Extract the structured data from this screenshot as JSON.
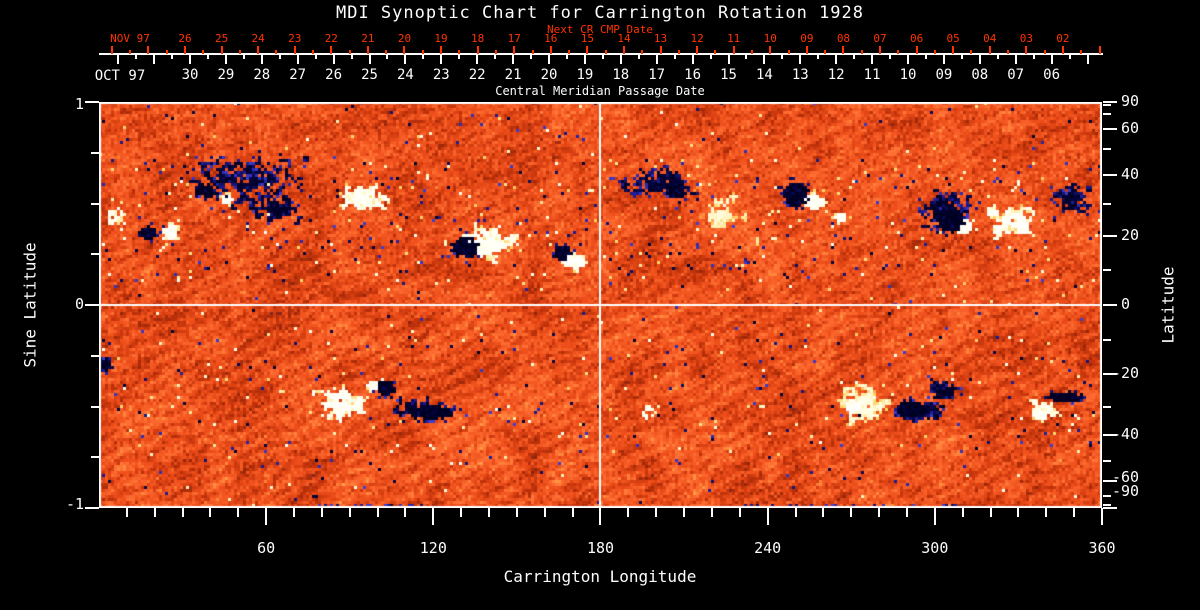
{
  "title": "MDI Synoptic Chart for Carrington Rotation 1928",
  "subtitle": "Central Meridian Passage Date",
  "top_axis": {
    "next_cr_label": "Next CR CMP Date",
    "nov_label": "NOV 97",
    "nov_days": [
      "26",
      "25",
      "24",
      "23",
      "22",
      "21",
      "20",
      "19",
      "18",
      "17",
      "16",
      "15",
      "14",
      "13",
      "12",
      "11",
      "10",
      "09",
      "08",
      "07",
      "06",
      "05",
      "04",
      "03",
      "02"
    ],
    "oct_label": "OCT 97",
    "oct_days": [
      "30",
      "29",
      "28",
      "27",
      "26",
      "25",
      "24",
      "23",
      "22",
      "21",
      "20",
      "19",
      "18",
      "17",
      "16",
      "15",
      "14",
      "13",
      "12",
      "11",
      "10",
      "09",
      "08",
      "07",
      "06"
    ]
  },
  "x_axis": {
    "label": "Carrington Longitude",
    "tick_labels": [
      "60",
      "120",
      "180",
      "240",
      "300",
      "360"
    ],
    "minor_step_deg": 10,
    "range_deg": [
      0,
      360
    ]
  },
  "y_left": {
    "label": "Sine Latitude",
    "tick_labels": [
      "1",
      "0",
      "-1"
    ],
    "minor_step": 0.25,
    "range": [
      -1,
      1
    ]
  },
  "y_right": {
    "label": "Latitude",
    "tick_labels": [
      "90",
      "60",
      "40",
      "20",
      "0",
      "-20",
      "-40",
      "-60",
      "-90"
    ],
    "minor_ticks_deg": [
      80,
      70,
      50,
      30,
      10,
      -10,
      -30,
      -50,
      -70,
      -80
    ]
  },
  "colors": {
    "background": "#000000",
    "axis": "#fdfdfd",
    "secondary_axis_red": "#ff3300",
    "quiet_sun_orange": "#ee4e1a",
    "negative_polarity_navy": "#1c1c96",
    "positive_polarity_white": "#ffffff",
    "plage_yellow": "#ffd468"
  },
  "chart_data": {
    "type": "heatmap",
    "title": "MDI Synoptic Chart for Carrington Rotation 1928",
    "xlabel": "Carrington Longitude",
    "ylabel_left": "Sine Latitude",
    "ylabel_right": "Latitude",
    "x_range_deg": [
      0,
      360
    ],
    "y_range_sinlat": [
      -1,
      1
    ],
    "grid_lines": {
      "equator_sinlat": 0,
      "meridian_lon_deg": 180
    },
    "background_field": "quiet-sun salt-and-pepper magnetic noise, orange base with blue/yellow speckle, diagonal striations",
    "active_regions": [
      {
        "name": "NL-speckle-cloud",
        "style": "speckle",
        "polarity": -1,
        "lon": 53,
        "sinlat": 0.62,
        "rlon": 26,
        "rsin": 0.16,
        "count": 240
      },
      {
        "name": "NL-filaments",
        "style": "network",
        "polarity": -1,
        "lon": 64,
        "sinlat": 0.48,
        "rlon": 11,
        "rsin": 0.07,
        "count": 30
      },
      {
        "name": "NL-dark-core",
        "style": "blob",
        "polarity": -1,
        "lon": 38.5,
        "sinlat": 0.565,
        "rlon": 3.2,
        "rsin": 0.035
      },
      {
        "name": "NL-white-core",
        "style": "blob",
        "polarity": 1,
        "lon": 46,
        "sinlat": 0.52,
        "rlon": 2.2,
        "rsin": 0.024
      },
      {
        "name": "NL-pair-neg",
        "style": "blob",
        "polarity": -1,
        "lon": 18.5,
        "sinlat": 0.355,
        "rlon": 3.0,
        "rsin": 0.032
      },
      {
        "name": "NL-pair-pos",
        "style": "blob",
        "polarity": 1,
        "lon": 26,
        "sinlat": 0.35,
        "rlon": 3.0,
        "rsin": 0.035
      },
      {
        "name": "NL-plage-95",
        "style": "network",
        "polarity": 1,
        "lon": 95,
        "sinlat": 0.52,
        "rlon": 9,
        "rsin": 0.075,
        "count": 34
      },
      {
        "name": "NL-big-plage-140",
        "style": "network",
        "polarity": 1,
        "lon": 140,
        "sinlat": 0.305,
        "rlon": 10,
        "rsin": 0.1,
        "count": 50
      },
      {
        "name": "NL-big-neg-132",
        "style": "blob",
        "polarity": -1,
        "lon": 132.5,
        "sinlat": 0.285,
        "rlon": 5.5,
        "rsin": 0.05
      },
      {
        "name": "NL-pair167-neg",
        "style": "blob",
        "polarity": -1,
        "lon": 167,
        "sinlat": 0.25,
        "rlon": 3.2,
        "rsin": 0.04
      },
      {
        "name": "NL-pair167-pos",
        "style": "blob",
        "polarity": 1,
        "lon": 171.5,
        "sinlat": 0.21,
        "rlon": 3.4,
        "rsin": 0.038
      },
      {
        "name": "NL-edge-specks",
        "style": "speckle",
        "polarity": 1,
        "lon": 6,
        "sinlat": 0.43,
        "rlon": 4.5,
        "rsin": 0.05,
        "count": 26
      },
      {
        "name": "NR-speckle-cloud",
        "style": "speckle",
        "polarity": -1,
        "lon": 200,
        "sinlat": 0.6,
        "rlon": 15,
        "rsin": 0.085,
        "count": 130
      },
      {
        "name": "NR-dark-core-208",
        "style": "blob",
        "polarity": -1,
        "lon": 208,
        "sinlat": 0.565,
        "rlon": 3.4,
        "rsin": 0.04
      },
      {
        "name": "NR-yellow-plage-224",
        "style": "network",
        "polarity": 1,
        "lon": 224,
        "sinlat": 0.455,
        "rlon": 8.5,
        "rsin": 0.07,
        "count": 28,
        "strength": 0.75
      },
      {
        "name": "NR-black-250",
        "style": "blob",
        "polarity": -1,
        "lon": 250.5,
        "sinlat": 0.55,
        "rlon": 4.8,
        "rsin": 0.055
      },
      {
        "name": "NR-white-257",
        "style": "blob",
        "polarity": 1,
        "lon": 257.5,
        "sinlat": 0.5,
        "rlon": 3.4,
        "rsin": 0.04
      },
      {
        "name": "NR-white-267",
        "style": "blob",
        "polarity": 1,
        "lon": 267,
        "sinlat": 0.435,
        "rlon": 2.2,
        "rsin": 0.024
      },
      {
        "name": "NR-complex-cloud",
        "style": "speckle",
        "polarity": -1,
        "lon": 304,
        "sinlat": 0.47,
        "rlon": 13,
        "rsin": 0.13,
        "count": 150
      },
      {
        "name": "NR-complex-black",
        "style": "blob",
        "polarity": -1,
        "lon": 306,
        "sinlat": 0.41,
        "rlon": 5.5,
        "rsin": 0.055
      },
      {
        "name": "NR-complex-white",
        "style": "blob",
        "polarity": 1,
        "lon": 310.5,
        "sinlat": 0.38,
        "rlon": 3.0,
        "rsin": 0.034
      },
      {
        "name": "NR-plage-328",
        "style": "network",
        "polarity": 1,
        "lon": 328,
        "sinlat": 0.42,
        "rlon": 10,
        "rsin": 0.08,
        "count": 38
      },
      {
        "name": "NR-bright-331",
        "style": "blob",
        "polarity": 1,
        "lon": 331.5,
        "sinlat": 0.39,
        "rlon": 3.0,
        "rsin": 0.032
      },
      {
        "name": "NR-edge-trail",
        "style": "speckle",
        "polarity": -1,
        "lon": 349.5,
        "sinlat": 0.52,
        "rlon": 9,
        "rsin": 0.095,
        "count": 80
      },
      {
        "name": "SL-edge-neg",
        "style": "blob",
        "polarity": -1,
        "lon": 1.5,
        "sinlat": -0.3,
        "rlon": 2.4,
        "rsin": 0.035
      },
      {
        "name": "SL-plage-87",
        "style": "network",
        "polarity": 1,
        "lon": 87.5,
        "sinlat": -0.49,
        "rlon": 11,
        "rsin": 0.1,
        "count": 42
      },
      {
        "name": "SL-bright-88",
        "style": "blob",
        "polarity": 1,
        "lon": 88,
        "sinlat": -0.44,
        "rlon": 2.4,
        "rsin": 0.03
      },
      {
        "name": "SL-white-dot-98",
        "style": "blob",
        "polarity": 1,
        "lon": 98.5,
        "sinlat": -0.4,
        "rlon": 2.0,
        "rsin": 0.026
      },
      {
        "name": "SL-black-103",
        "style": "blob",
        "polarity": -1,
        "lon": 103.5,
        "sinlat": -0.405,
        "rlon": 3.4,
        "rsin": 0.036
      },
      {
        "name": "SL-navy-streak-119",
        "style": "blob",
        "polarity": -1,
        "lon": 119.5,
        "sinlat": -0.535,
        "rlon": 8,
        "rsin": 0.035
      },
      {
        "name": "SL-sparse-navy",
        "style": "speckle",
        "polarity": -1,
        "lon": 112,
        "sinlat": -0.5,
        "rlon": 8,
        "rsin": 0.06,
        "count": 40
      },
      {
        "name": "SR-faint-pos-197",
        "style": "speckle",
        "polarity": 1,
        "lon": 197.5,
        "sinlat": -0.53,
        "rlon": 3,
        "rsin": 0.035,
        "count": 14
      },
      {
        "name": "SR-yellow-plage-274",
        "style": "network",
        "polarity": 1,
        "lon": 274,
        "sinlat": -0.485,
        "rlon": 12,
        "rsin": 0.11,
        "count": 55,
        "strength": 0.8
      },
      {
        "name": "SR-bright-271",
        "style": "blob",
        "polarity": 1,
        "lon": 271,
        "sinlat": -0.5,
        "rlon": 3,
        "rsin": 0.035
      },
      {
        "name": "SR-navy-cluster-295",
        "style": "speckle",
        "polarity": -1,
        "lon": 295,
        "sinlat": -0.52,
        "rlon": 11,
        "rsin": 0.055,
        "count": 110
      },
      {
        "name": "SR-navy-dense-292",
        "style": "blob",
        "polarity": -1,
        "lon": 292,
        "sinlat": -0.515,
        "rlon": 5,
        "rsin": 0.042
      },
      {
        "name": "SR-navy-arc-303",
        "style": "network",
        "polarity": -1,
        "lon": 303.5,
        "sinlat": -0.42,
        "rlon": 6,
        "rsin": 0.055,
        "count": 22
      },
      {
        "name": "SR-white-339",
        "style": "network",
        "polarity": 1,
        "lon": 339,
        "sinlat": -0.53,
        "rlon": 5,
        "rsin": 0.055,
        "count": 26
      },
      {
        "name": "SR-navy-streak-348",
        "style": "blob",
        "polarity": -1,
        "lon": 348,
        "sinlat": -0.46,
        "rlon": 6,
        "rsin": 0.028
      }
    ],
    "bottom_dark_segments_lon": [
      [
        78,
        117
      ],
      [
        226,
        311
      ]
    ]
  }
}
